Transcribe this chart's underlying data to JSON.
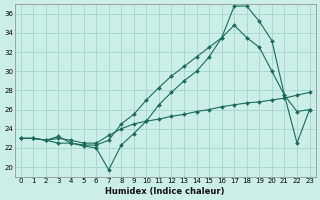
{
  "xlabel": "Humidex (Indice chaleur)",
  "bg_color": "#cceee8",
  "grid_color": "#aad8d0",
  "line_color": "#1a6b5a",
  "xlim": [
    -0.5,
    23.5
  ],
  "ylim": [
    19.0,
    37.0
  ],
  "yticks": [
    20,
    22,
    24,
    26,
    28,
    30,
    32,
    34,
    36
  ],
  "xticks": [
    0,
    1,
    2,
    3,
    4,
    5,
    6,
    7,
    8,
    9,
    10,
    11,
    12,
    13,
    14,
    15,
    16,
    17,
    18,
    19,
    20,
    21,
    22,
    23
  ],
  "line1_x": [
    0,
    1,
    2,
    3,
    4,
    5,
    6,
    7,
    8,
    9,
    10,
    11,
    12,
    13,
    14,
    15,
    16,
    17,
    18,
    19,
    20,
    21,
    22,
    23
  ],
  "line1_y": [
    23.0,
    23.0,
    22.8,
    22.5,
    22.5,
    22.3,
    22.3,
    22.8,
    24.5,
    25.5,
    27.0,
    28.3,
    29.5,
    30.5,
    31.5,
    32.5,
    33.5,
    34.8,
    33.5,
    32.5,
    30.0,
    27.5,
    25.8,
    26.0
  ],
  "line2_x": [
    0,
    1,
    2,
    3,
    4,
    5,
    6,
    7,
    8,
    9,
    10,
    11,
    12,
    13,
    14,
    15,
    16,
    17,
    18,
    19,
    20,
    21,
    22,
    23
  ],
  "line2_y": [
    23.0,
    23.0,
    22.8,
    23.2,
    22.5,
    22.2,
    22.0,
    19.7,
    22.3,
    23.5,
    24.8,
    26.5,
    27.8,
    29.0,
    30.0,
    31.5,
    33.5,
    36.8,
    36.8,
    35.2,
    33.2,
    27.5,
    22.5,
    26.0
  ],
  "line3_x": [
    0,
    1,
    2,
    3,
    4,
    5,
    6,
    7,
    8,
    9,
    10,
    11,
    12,
    13,
    14,
    15,
    16,
    17,
    18,
    19,
    20,
    21,
    22,
    23
  ],
  "line3_y": [
    23.0,
    23.0,
    22.8,
    23.0,
    22.8,
    22.5,
    22.5,
    23.3,
    24.0,
    24.5,
    24.8,
    25.0,
    25.3,
    25.5,
    25.8,
    26.0,
    26.3,
    26.5,
    26.7,
    26.8,
    27.0,
    27.2,
    27.5,
    27.8
  ]
}
